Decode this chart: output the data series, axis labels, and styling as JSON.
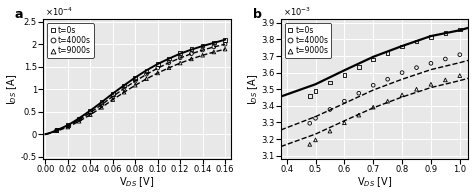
{
  "panel_a": {
    "label": "a",
    "xlabel": "V$_{DS}$ [V]",
    "ylabel": "I$_{DS}$ [A]",
    "xlim": [
      -0.002,
      0.165
    ],
    "ylim": [
      -5.5e-05,
      0.000255
    ],
    "ytick_vals": [
      -5e-05,
      0,
      5e-05,
      0.0001,
      0.00015,
      0.0002,
      0.00025
    ],
    "ytick_labels": [
      "-0.5",
      "0",
      "0.5",
      "1",
      "1.5",
      "2",
      "2.5"
    ],
    "xticks": [
      0,
      0.02,
      0.04,
      0.06,
      0.08,
      0.1,
      0.12,
      0.14,
      0.16
    ],
    "scale_exp": -4,
    "legend_labels": [
      "t=0s",
      "t=4000s",
      "t=9000s"
    ],
    "curve_t0": {
      "line_x": [
        0.0,
        0.004,
        0.008,
        0.012,
        0.016,
        0.02,
        0.025,
        0.03,
        0.035,
        0.04,
        0.05,
        0.06,
        0.07,
        0.08,
        0.09,
        0.1,
        0.11,
        0.12,
        0.13,
        0.14,
        0.15,
        0.16
      ],
      "line_y": [
        0.0,
        2.8e-06,
        6.8e-06,
        1.1e-05,
        1.55e-05,
        2e-05,
        2.75e-05,
        3.55e-05,
        4.4e-05,
        5.25e-05,
        7.1e-05,
        9.05e-05,
        0.0001085,
        0.000126,
        0.000142,
        0.000156,
        0.000168,
        0.000179,
        0.000188,
        0.000196,
        0.000203,
        0.00021
      ],
      "scatter_x": [
        0.01,
        0.02,
        0.03,
        0.04,
        0.05,
        0.06,
        0.07,
        0.08,
        0.09,
        0.1,
        0.11,
        0.12,
        0.13,
        0.14,
        0.15,
        0.16
      ],
      "scatter_y": [
        1e-05,
        2e-05,
        3.5e-05,
        5.2e-05,
        7.1e-05,
        9e-05,
        0.000108,
        0.000125,
        0.000141,
        0.000156,
        0.000168,
        0.00018,
        0.000189,
        0.000197,
        0.000204,
        0.00021
      ],
      "marker": "s",
      "linestyle": "-",
      "linewidth": 1.4
    },
    "curve_t4000": {
      "line_x": [
        0.0,
        0.004,
        0.008,
        0.012,
        0.016,
        0.02,
        0.025,
        0.03,
        0.035,
        0.04,
        0.05,
        0.06,
        0.07,
        0.08,
        0.09,
        0.1,
        0.11,
        0.12,
        0.13,
        0.14,
        0.15,
        0.16
      ],
      "line_y": [
        0.0,
        2.5e-06,
        6e-06,
        9.8e-06,
        1.4e-05,
        1.8e-05,
        2.48e-05,
        3.2e-05,
        4e-05,
        4.8e-05,
        6.55e-05,
        8.4e-05,
        0.0001015,
        0.000118,
        0.000133,
        0.0001468,
        0.0001588,
        0.0001695,
        0.0001788,
        0.0001869,
        0.0001939,
        0.0002
      ],
      "scatter_x": [
        0.01,
        0.02,
        0.03,
        0.04,
        0.05,
        0.06,
        0.07,
        0.08,
        0.09,
        0.1,
        0.11,
        0.12,
        0.13,
        0.14,
        0.15,
        0.16
      ],
      "scatter_y": [
        9e-06,
        1.8e-05,
        3.2e-05,
        4.8e-05,
        6.55e-05,
        8.4e-05,
        0.0001015,
        0.000118,
        0.0001335,
        0.000147,
        0.000159,
        0.0001698,
        0.000179,
        0.000187,
        0.000194,
        0.0002
      ],
      "marker": "o",
      "linestyle": "--",
      "linewidth": 1.0
    },
    "curve_t9000": {
      "line_x": [
        0.0,
        0.004,
        0.008,
        0.012,
        0.016,
        0.02,
        0.025,
        0.03,
        0.035,
        0.04,
        0.05,
        0.06,
        0.07,
        0.08,
        0.09,
        0.1,
        0.11,
        0.12,
        0.13,
        0.14,
        0.15,
        0.16
      ],
      "line_y": [
        0.0,
        2.2e-06,
        5.2e-06,
        8.6e-06,
        1.23e-05,
        1.6e-05,
        2.22e-05,
        2.88e-05,
        3.6e-05,
        4.33e-05,
        5.95e-05,
        7.68e-05,
        9.32e-05,
        0.0001087,
        0.000123,
        0.000136,
        0.0001475,
        0.000158,
        0.0001672,
        0.0001754,
        0.0001826,
        0.000189
      ],
      "scatter_x": [
        0.01,
        0.02,
        0.03,
        0.04,
        0.05,
        0.06,
        0.07,
        0.08,
        0.09,
        0.1,
        0.11,
        0.12,
        0.13,
        0.14,
        0.15,
        0.16
      ],
      "scatter_y": [
        8e-06,
        1.6e-05,
        2.9e-05,
        4.35e-05,
        5.98e-05,
        7.7e-05,
        9.35e-05,
        0.000109,
        0.0001233,
        0.0001362,
        0.0001477,
        0.0001582,
        0.0001674,
        0.0001756,
        0.0001828,
        0.0001892
      ],
      "marker": "^",
      "linestyle": "--",
      "linewidth": 1.0
    }
  },
  "panel_b": {
    "label": "b",
    "xlabel": "V$_{DS}$ [V]",
    "ylabel": "I$_{DS}$ [A]",
    "xlim": [
      0.38,
      1.03
    ],
    "ylim": [
      0.00308,
      0.00392
    ],
    "ytick_vals": [
      0.0031,
      0.0032,
      0.0033,
      0.0034,
      0.0035,
      0.0036,
      0.0037,
      0.0038,
      0.0039
    ],
    "ytick_labels": [
      "3.1",
      "3.2",
      "3.3",
      "3.4",
      "3.5",
      "3.6",
      "3.7",
      "3.8",
      "3.9"
    ],
    "xticks": [
      0.4,
      0.5,
      0.6,
      0.7,
      0.8,
      0.9,
      1.0
    ],
    "scale_exp": -3,
    "legend_labels": [
      "t=0s",
      "t=4000s",
      "t=9000s"
    ],
    "curve_t0": {
      "line_x": [
        0.38,
        0.5,
        0.6,
        0.7,
        0.8,
        0.9,
        1.0,
        1.03
      ],
      "line_y": [
        0.003456,
        0.00353,
        0.003614,
        0.003695,
        0.00376,
        0.00382,
        0.003855,
        0.00387
      ],
      "scatter_x": [
        0.48,
        0.5,
        0.55,
        0.6,
        0.65,
        0.7,
        0.75,
        0.8,
        0.85,
        0.9,
        0.95,
        1.0
      ],
      "scatter_y": [
        0.00346,
        0.00349,
        0.00354,
        0.003585,
        0.003635,
        0.003678,
        0.003718,
        0.003758,
        0.003788,
        0.003815,
        0.00384,
        0.00386
      ],
      "marker": "s",
      "linestyle": "-",
      "linewidth": 1.6
    },
    "curve_t4000": {
      "line_x": [
        0.38,
        0.5,
        0.6,
        0.7,
        0.8,
        0.9,
        1.0,
        1.03
      ],
      "line_y": [
        0.003255,
        0.003335,
        0.003415,
        0.003495,
        0.00356,
        0.003618,
        0.00366,
        0.003674
      ],
      "scatter_x": [
        0.48,
        0.5,
        0.55,
        0.6,
        0.65,
        0.7,
        0.75,
        0.8,
        0.85,
        0.9,
        0.95,
        1.0
      ],
      "scatter_y": [
        0.003295,
        0.003325,
        0.003378,
        0.003428,
        0.003476,
        0.003524,
        0.00356,
        0.0036,
        0.00363,
        0.003656,
        0.003682,
        0.003708
      ],
      "marker": "o",
      "linestyle": "--",
      "linewidth": 1.0
    },
    "curve_t9000": {
      "line_x": [
        0.38,
        0.5,
        0.6,
        0.7,
        0.8,
        0.9,
        1.0,
        1.03
      ],
      "line_y": [
        0.003155,
        0.00323,
        0.00331,
        0.003388,
        0.003453,
        0.00351,
        0.003552,
        0.003566
      ],
      "scatter_x": [
        0.48,
        0.5,
        0.55,
        0.6,
        0.65,
        0.7,
        0.75,
        0.8,
        0.85,
        0.9,
        0.95,
        1.0
      ],
      "scatter_y": [
        0.003168,
        0.003195,
        0.003248,
        0.003298,
        0.003344,
        0.003392,
        0.003428,
        0.003466,
        0.0035,
        0.00353,
        0.003556,
        0.003582
      ],
      "marker": "^",
      "linestyle": "--",
      "linewidth": 1.0
    }
  },
  "bg_color": "#e8e8e8",
  "grid_color": "#ffffff",
  "font_size": 7,
  "legend_fontsize": 5.5,
  "tick_fontsize": 6
}
